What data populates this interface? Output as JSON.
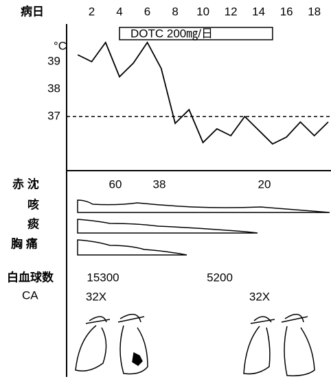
{
  "chart_data": {
    "type": "line",
    "x_label": "病日",
    "y_label": "°C",
    "x": [
      1,
      2,
      3,
      4,
      5,
      6,
      7,
      8,
      9,
      10,
      11,
      12,
      13,
      14,
      15,
      16,
      17,
      18,
      19
    ],
    "values": [
      39.25,
      39.0,
      39.7,
      38.45,
      38.95,
      39.7,
      38.75,
      36.75,
      37.25,
      36.05,
      36.55,
      36.3,
      37.0,
      36.5,
      36.0,
      36.25,
      36.8,
      36.3,
      36.8
    ],
    "color": "#000000",
    "xlim": [
      0.2,
      19.2
    ],
    "xticks": [
      2,
      4,
      6,
      8,
      10,
      12,
      14,
      16,
      18
    ],
    "ylim": [
      35,
      40.4
    ],
    "yticks": [
      37,
      38,
      39
    ],
    "reference_line": 37,
    "annotation": {
      "text": "DOTC 200㎎/日",
      "from": 4,
      "to": 15
    }
  },
  "clinical": {
    "esr": {
      "label": "赤 沈",
      "values": [
        60,
        38,
        20
      ]
    },
    "symptoms": [
      "咳",
      "痰",
      "胸 痛"
    ],
    "wbc": {
      "label": "白血球数",
      "values": [
        15300,
        5200
      ]
    },
    "ca": {
      "label": "CA",
      "values": [
        "32X",
        "32X"
      ]
    }
  }
}
